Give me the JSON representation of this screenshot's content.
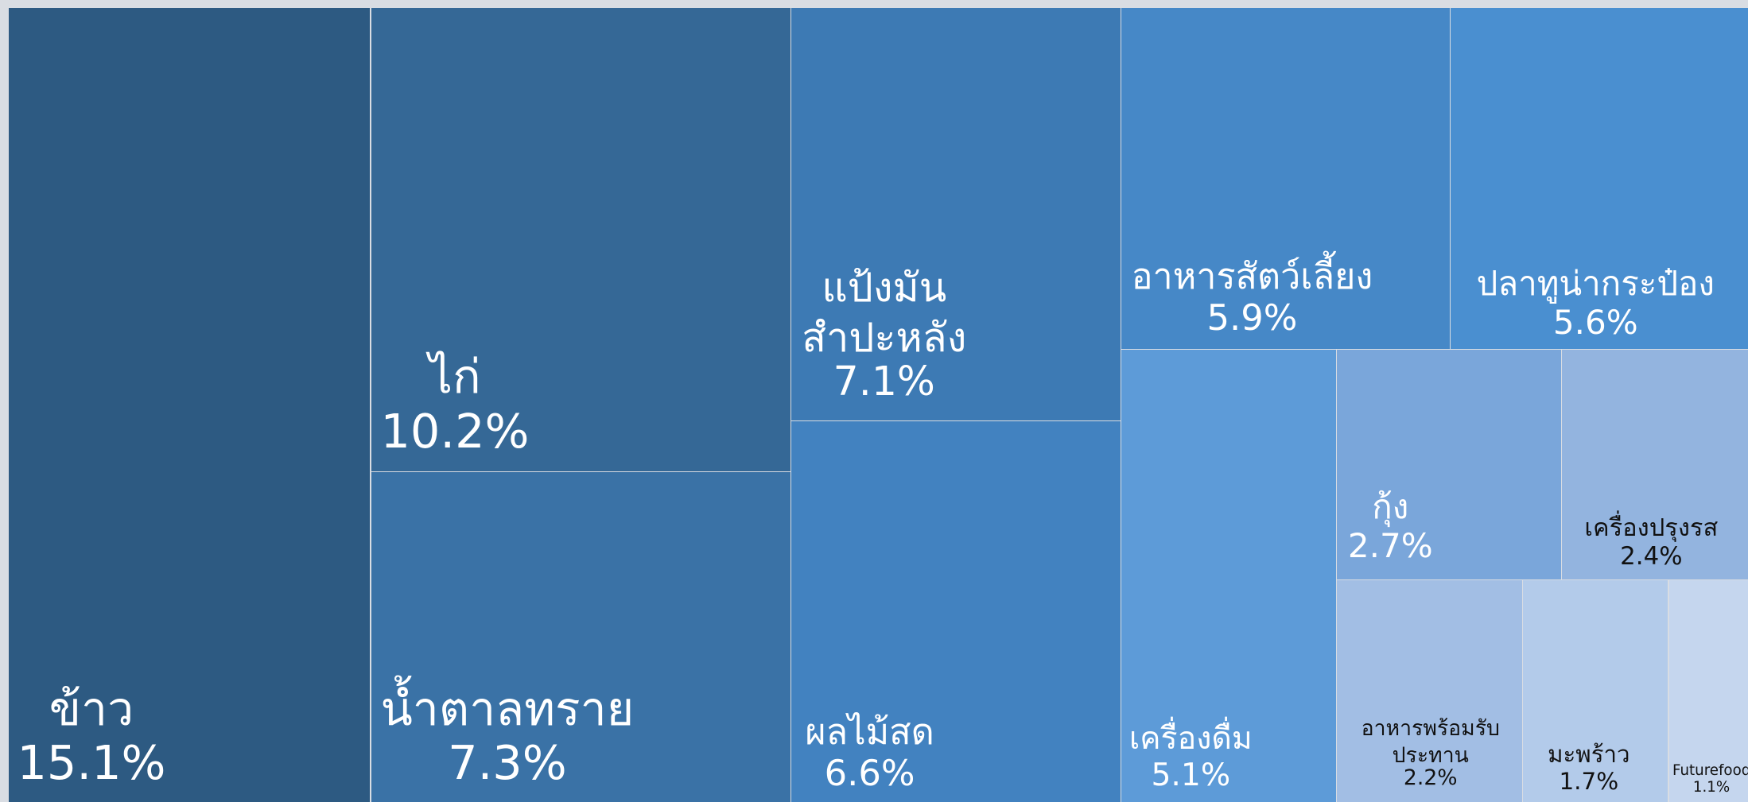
{
  "chart_data": {
    "type": "treemap",
    "categories": [
      "ข้าว",
      "ไก่",
      "น้ำตาลทราย",
      "แป้งมันสำปะหลัง",
      "ผลไม้สด",
      "อาหารสัตว์เลี้ยง",
      "ปลาทูน่ากระป๋อง",
      "เครื่องดื่ม",
      "กุ้ง",
      "เครื่องปรุงรส",
      "อาหารพร้อมรับประทาน",
      "มะพร้าว",
      "Futurefood"
    ],
    "values": [
      15.1,
      10.2,
      7.3,
      7.1,
      6.6,
      5.9,
      5.6,
      5.1,
      2.7,
      2.4,
      2.2,
      1.7,
      1.1
    ],
    "value_labels": [
      "15.1%",
      "10.2%",
      "7.3%",
      "7.1%",
      "6.6%",
      "5.9%",
      "5.6%",
      "5.1%",
      "2.7%",
      "2.4%",
      "2.2%",
      "1.7%",
      "1.1%"
    ],
    "colors": [
      "#2d5a82",
      "#356896",
      "#3a72a6",
      "#3d7ab4",
      "#4282c0",
      "#4688c7",
      "#4a8fd0",
      "#5d9bd8",
      "#7aa6da",
      "#93b4df",
      "#a2bee4",
      "#b3cbea",
      "#c5d6ee"
    ]
  }
}
